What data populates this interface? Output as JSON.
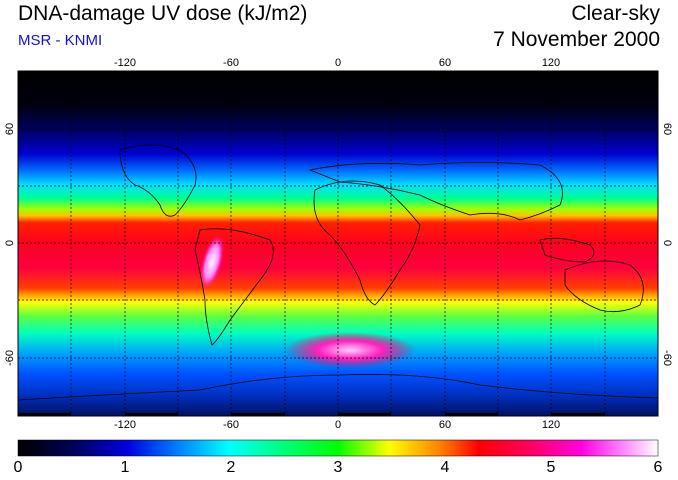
{
  "header": {
    "title": "DNA-damage UV dose (kJ/m2)",
    "source": "MSR - KNMI",
    "condition": "Clear-sky",
    "date": "7 November 2000"
  },
  "map": {
    "lon_ticks": [
      "-120",
      "-60",
      "0",
      "60",
      "120"
    ],
    "lat_ticks_left": [
      "60",
      "0",
      "-60"
    ],
    "lat_ticks_right": [
      "60",
      "0",
      "-60"
    ]
  },
  "colorbar": {
    "labels": [
      "0",
      "1",
      "2",
      "3",
      "4",
      "5",
      "6"
    ],
    "min": 0,
    "max": 6
  },
  "colors": {
    "palette": [
      "#000000",
      "#000040",
      "#0000c0",
      "#0060ff",
      "#00c0ff",
      "#00ffff",
      "#00ff80",
      "#00ff00",
      "#a0ff00",
      "#ffff00",
      "#ff8000",
      "#ff0000",
      "#ff0060",
      "#ff00c0",
      "#ff60ff",
      "#ffffff"
    ],
    "title_blue": "#1010d8"
  }
}
